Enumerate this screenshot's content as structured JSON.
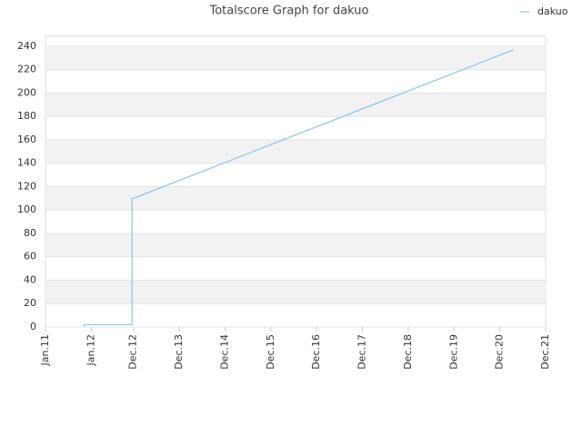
{
  "chart_data": {
    "type": "line",
    "title": "Totalscore Graph for dakuo",
    "x": [
      2011.85,
      2011.85,
      2012.89,
      2012.89,
      2012.89,
      2012.92,
      2021.22
    ],
    "series": [
      {
        "name": "dakuo",
        "color": "#88c4f0",
        "values": [
          0,
          2,
          2,
          22,
          110,
          110,
          237
        ]
      }
    ],
    "xlim": [
      2011.0,
      2021.92
    ],
    "xticks": [
      {
        "value": 2011.0,
        "label": "Jan.11"
      },
      {
        "value": 2012.0,
        "label": "Jan.12"
      },
      {
        "value": 2012.92,
        "label": "Dec.12"
      },
      {
        "value": 2013.92,
        "label": "Dec.13"
      },
      {
        "value": 2014.92,
        "label": "Dec.14"
      },
      {
        "value": 2015.92,
        "label": "Dec.15"
      },
      {
        "value": 2016.92,
        "label": "Dec.16"
      },
      {
        "value": 2017.92,
        "label": "Dec.17"
      },
      {
        "value": 2018.92,
        "label": "Dec.18"
      },
      {
        "value": 2019.92,
        "label": "Dec.19"
      },
      {
        "value": 2020.92,
        "label": "Dec.20"
      },
      {
        "value": 2021.92,
        "label": "Dec.21"
      }
    ],
    "ylim": [
      0,
      248.5
    ],
    "yticks": [
      0,
      20,
      40,
      60,
      80,
      100,
      120,
      140,
      160,
      180,
      200,
      220,
      240
    ],
    "grid": true,
    "legend": "top-right"
  }
}
